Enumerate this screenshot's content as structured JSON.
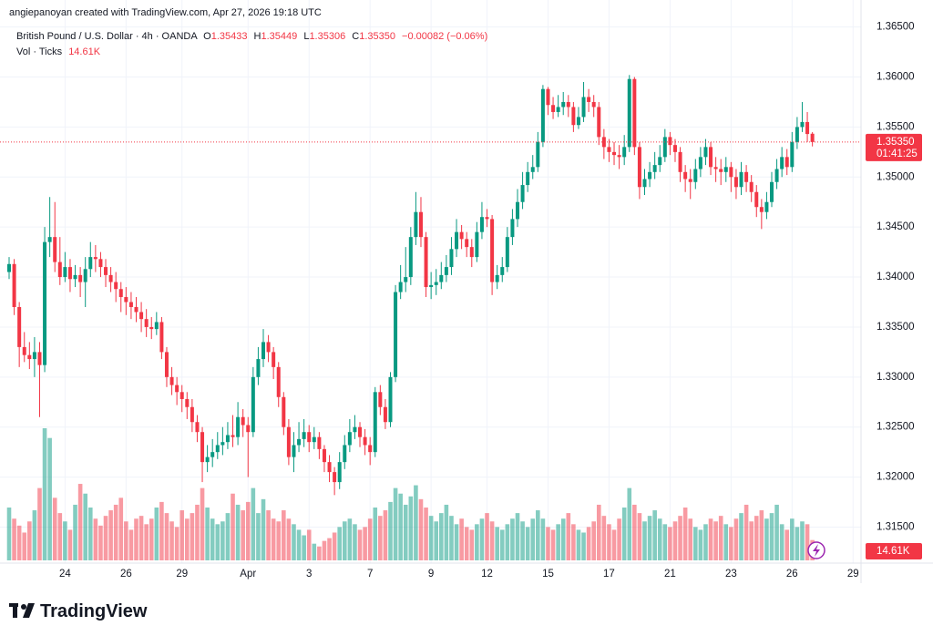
{
  "watermark": "angiepanoyan created with TradingView.com, Apr 27, 2026 19:18 UTC",
  "logo": "TradingView",
  "chart_data": {
    "type": "candlestick",
    "symbol": "British Pound / U.S. Dollar · 4h · OANDA",
    "legend": {
      "open_label": "O",
      "open": "1.35433",
      "high_label": "H",
      "high": "1.35449",
      "low_label": "L",
      "low": "1.35306",
      "close_label": "C",
      "close": "1.35350",
      "change": "−0.00082 (−0.06%)"
    },
    "volume_title": "Vol · Ticks",
    "volume_legend": "14.61K",
    "last_price_label": "1.35350",
    "countdown": "01:41:25",
    "volume_label": "14.61K",
    "up_color": "#089981",
    "down_color": "#f23645",
    "ylim": [
      1.3114,
      1.3677
    ],
    "yticks": [
      {
        "value": 1.315,
        "label": "1.31500"
      },
      {
        "value": 1.32,
        "label": "1.32000"
      },
      {
        "value": 1.325,
        "label": "1.32500"
      },
      {
        "value": 1.33,
        "label": "1.33000"
      },
      {
        "value": 1.335,
        "label": "1.33500"
      },
      {
        "value": 1.34,
        "label": "1.34000"
      },
      {
        "value": 1.345,
        "label": "1.34500"
      },
      {
        "value": 1.35,
        "label": "1.35000"
      },
      {
        "value": 1.355,
        "label": "1.35500"
      },
      {
        "value": 1.36,
        "label": "1.36000"
      },
      {
        "value": 1.365,
        "label": "1.36500"
      }
    ],
    "categories": [
      null,
      null,
      null,
      null,
      null,
      null,
      null,
      null,
      null,
      null,
      null,
      "24",
      null,
      null,
      null,
      null,
      null,
      null,
      null,
      null,
      null,
      null,
      null,
      "26",
      null,
      null,
      null,
      null,
      null,
      null,
      null,
      null,
      null,
      null,
      "29",
      null,
      null,
      null,
      null,
      null,
      null,
      null,
      null,
      null,
      null,
      null,
      null,
      "Apr",
      null,
      null,
      null,
      null,
      null,
      null,
      null,
      null,
      null,
      null,
      null,
      "3",
      null,
      null,
      null,
      null,
      null,
      null,
      null,
      null,
      null,
      null,
      null,
      "7",
      null,
      null,
      null,
      null,
      null,
      null,
      null,
      null,
      null,
      null,
      null,
      "9",
      null,
      null,
      null,
      null,
      null,
      null,
      null,
      null,
      null,
      null,
      "12",
      null,
      null,
      null,
      null,
      null,
      null,
      null,
      null,
      null,
      null,
      null,
      "15",
      null,
      null,
      null,
      null,
      null,
      null,
      null,
      null,
      null,
      null,
      null,
      "17",
      null,
      null,
      null,
      null,
      null,
      null,
      null,
      null,
      null,
      null,
      null,
      "21",
      null,
      null,
      null,
      null,
      null,
      null,
      null,
      null,
      null,
      null,
      null,
      "23",
      null,
      null,
      null,
      null,
      null,
      null,
      null,
      null,
      null,
      null,
      null,
      "26",
      null,
      null,
      null,
      null,
      null,
      null,
      null,
      null,
      null,
      null,
      null,
      "29"
    ],
    "candles": [
      [
        1.3405,
        1.342,
        1.3398,
        1.3413
      ],
      [
        1.3413,
        1.3418,
        1.3362,
        1.337
      ],
      [
        1.337,
        1.3375,
        1.331,
        1.333
      ],
      [
        1.333,
        1.3345,
        1.3315,
        1.3322
      ],
      [
        1.3322,
        1.3335,
        1.3308,
        1.3318
      ],
      [
        1.3318,
        1.334,
        1.33,
        1.3325
      ],
      [
        1.3325,
        1.3335,
        1.326,
        1.3312
      ],
      [
        1.3312,
        1.345,
        1.3305,
        1.3435
      ],
      [
        1.3435,
        1.348,
        1.342,
        1.344
      ],
      [
        1.344,
        1.3475,
        1.3405,
        1.3415
      ],
      [
        1.3415,
        1.344,
        1.3392,
        1.34
      ],
      [
        1.34,
        1.3425,
        1.3395,
        1.341
      ],
      [
        1.341,
        1.3418,
        1.3385,
        1.3398
      ],
      [
        1.3398,
        1.3412,
        1.339,
        1.3402
      ],
      [
        1.3402,
        1.341,
        1.338,
        1.3395
      ],
      [
        1.3395,
        1.342,
        1.337,
        1.3408
      ],
      [
        1.3408,
        1.3435,
        1.34,
        1.342
      ],
      [
        1.342,
        1.3432,
        1.3405,
        1.3418
      ],
      [
        1.3418,
        1.3425,
        1.34,
        1.341
      ],
      [
        1.341,
        1.3418,
        1.339,
        1.3402
      ],
      [
        1.3402,
        1.341,
        1.3385,
        1.3395
      ],
      [
        1.3395,
        1.3405,
        1.3375,
        1.3388
      ],
      [
        1.3388,
        1.3395,
        1.3365,
        1.338
      ],
      [
        1.338,
        1.339,
        1.3362,
        1.3375
      ],
      [
        1.3375,
        1.3385,
        1.3358,
        1.337
      ],
      [
        1.337,
        1.338,
        1.3355,
        1.3365
      ],
      [
        1.3365,
        1.3375,
        1.3345,
        1.3358
      ],
      [
        1.3358,
        1.3368,
        1.334,
        1.335
      ],
      [
        1.335,
        1.336,
        1.3338,
        1.3348
      ],
      [
        1.3348,
        1.3365,
        1.3342,
        1.3355
      ],
      [
        1.3355,
        1.336,
        1.3318,
        1.3325
      ],
      [
        1.3325,
        1.333,
        1.329,
        1.33
      ],
      [
        1.33,
        1.331,
        1.3282,
        1.3292
      ],
      [
        1.3292,
        1.33,
        1.3272,
        1.3285
      ],
      [
        1.3285,
        1.3292,
        1.3265,
        1.3278
      ],
      [
        1.3278,
        1.3285,
        1.3258,
        1.327
      ],
      [
        1.327,
        1.3278,
        1.3245,
        1.3255
      ],
      [
        1.3255,
        1.3262,
        1.3235,
        1.3245
      ],
      [
        1.3245,
        1.325,
        1.3195,
        1.3215
      ],
      [
        1.3215,
        1.3232,
        1.3205,
        1.322
      ],
      [
        1.322,
        1.3238,
        1.321,
        1.3225
      ],
      [
        1.3225,
        1.3245,
        1.3218,
        1.3232
      ],
      [
        1.3232,
        1.325,
        1.3222,
        1.3235
      ],
      [
        1.3235,
        1.3255,
        1.3228,
        1.3242
      ],
      [
        1.3242,
        1.3262,
        1.323,
        1.324
      ],
      [
        1.324,
        1.3275,
        1.3232,
        1.326
      ],
      [
        1.326,
        1.3268,
        1.324,
        1.3252
      ],
      [
        1.3252,
        1.326,
        1.32,
        1.3245
      ],
      [
        1.3245,
        1.331,
        1.324,
        1.33
      ],
      [
        1.33,
        1.333,
        1.3292,
        1.3318
      ],
      [
        1.3318,
        1.3348,
        1.331,
        1.3335
      ],
      [
        1.3335,
        1.3342,
        1.3315,
        1.3325
      ],
      [
        1.3325,
        1.333,
        1.3298,
        1.331
      ],
      [
        1.331,
        1.3315,
        1.327,
        1.328
      ],
      [
        1.328,
        1.3285,
        1.3242,
        1.325
      ],
      [
        1.325,
        1.3258,
        1.3212,
        1.322
      ],
      [
        1.322,
        1.3245,
        1.3205,
        1.3232
      ],
      [
        1.3232,
        1.3255,
        1.3225,
        1.3238
      ],
      [
        1.3238,
        1.3258,
        1.323,
        1.3245
      ],
      [
        1.3245,
        1.3252,
        1.3225,
        1.3235
      ],
      [
        1.3235,
        1.325,
        1.3228,
        1.324
      ],
      [
        1.324,
        1.3245,
        1.3218,
        1.3228
      ],
      [
        1.3228,
        1.3232,
        1.3205,
        1.3215
      ],
      [
        1.3215,
        1.3222,
        1.3195,
        1.3205
      ],
      [
        1.3205,
        1.321,
        1.3182,
        1.3195
      ],
      [
        1.3195,
        1.3225,
        1.3188,
        1.3215
      ],
      [
        1.3215,
        1.3242,
        1.3208,
        1.3232
      ],
      [
        1.3232,
        1.3258,
        1.3225,
        1.3245
      ],
      [
        1.3245,
        1.3262,
        1.3238,
        1.325
      ],
      [
        1.325,
        1.3255,
        1.323,
        1.324
      ],
      [
        1.324,
        1.3248,
        1.3222,
        1.3232
      ],
      [
        1.3232,
        1.324,
        1.3212,
        1.3225
      ],
      [
        1.3225,
        1.329,
        1.322,
        1.3285
      ],
      [
        1.3285,
        1.3292,
        1.3262,
        1.327
      ],
      [
        1.327,
        1.3278,
        1.3248,
        1.3255
      ],
      [
        1.3255,
        1.3305,
        1.325,
        1.33
      ],
      [
        1.33,
        1.3392,
        1.3295,
        1.3385
      ],
      [
        1.3385,
        1.3412,
        1.3378,
        1.3395
      ],
      [
        1.3395,
        1.343,
        1.3385,
        1.34
      ],
      [
        1.34,
        1.345,
        1.3392,
        1.344
      ],
      [
        1.344,
        1.3485,
        1.3432,
        1.3465
      ],
      [
        1.3465,
        1.348,
        1.343,
        1.344
      ],
      [
        1.344,
        1.3445,
        1.338,
        1.339
      ],
      [
        1.339,
        1.3405,
        1.3378,
        1.3392
      ],
      [
        1.3392,
        1.3408,
        1.3382,
        1.3395
      ],
      [
        1.3395,
        1.3415,
        1.3388,
        1.3402
      ],
      [
        1.3402,
        1.3422,
        1.3395,
        1.341
      ],
      [
        1.341,
        1.344,
        1.3402,
        1.3428
      ],
      [
        1.3428,
        1.3458,
        1.342,
        1.3445
      ],
      [
        1.3445,
        1.3452,
        1.3428,
        1.3438
      ],
      [
        1.3438,
        1.3445,
        1.342,
        1.343
      ],
      [
        1.343,
        1.3438,
        1.341,
        1.342
      ],
      [
        1.342,
        1.3455,
        1.3415,
        1.3445
      ],
      [
        1.3445,
        1.3475,
        1.3438,
        1.346
      ],
      [
        1.346,
        1.3468,
        1.345,
        1.3458
      ],
      [
        1.3458,
        1.3462,
        1.3382,
        1.3395
      ],
      [
        1.3395,
        1.3412,
        1.3388,
        1.3402
      ],
      [
        1.3402,
        1.342,
        1.3395,
        1.341
      ],
      [
        1.341,
        1.345,
        1.3405,
        1.344
      ],
      [
        1.344,
        1.3468,
        1.3432,
        1.3458
      ],
      [
        1.3458,
        1.3488,
        1.345,
        1.3475
      ],
      [
        1.3475,
        1.3505,
        1.3468,
        1.3492
      ],
      [
        1.3492,
        1.3515,
        1.3485,
        1.3505
      ],
      [
        1.3505,
        1.3522,
        1.3498,
        1.351
      ],
      [
        1.351,
        1.3545,
        1.3505,
        1.3535
      ],
      [
        1.3535,
        1.3592,
        1.353,
        1.3588
      ],
      [
        1.3588,
        1.359,
        1.3562,
        1.3572
      ],
      [
        1.3572,
        1.358,
        1.3558,
        1.3565
      ],
      [
        1.3565,
        1.3582,
        1.356,
        1.357
      ],
      [
        1.357,
        1.3585,
        1.3562,
        1.3575
      ],
      [
        1.3575,
        1.3582,
        1.356,
        1.357
      ],
      [
        1.357,
        1.3575,
        1.3545,
        1.3552
      ],
      [
        1.3552,
        1.357,
        1.3548,
        1.356
      ],
      [
        1.356,
        1.3595,
        1.3555,
        1.358
      ],
      [
        1.358,
        1.3588,
        1.3565,
        1.3575
      ],
      [
        1.3575,
        1.3582,
        1.356,
        1.357
      ],
      [
        1.357,
        1.3575,
        1.3532,
        1.354
      ],
      [
        1.354,
        1.3548,
        1.3518,
        1.353
      ],
      [
        1.353,
        1.3538,
        1.3515,
        1.3525
      ],
      [
        1.3525,
        1.3535,
        1.3512,
        1.3522
      ],
      [
        1.3522,
        1.3532,
        1.3508,
        1.352
      ],
      [
        1.352,
        1.3542,
        1.3512,
        1.353
      ],
      [
        1.353,
        1.3602,
        1.3525,
        1.3598
      ],
      [
        1.3598,
        1.36,
        1.3522,
        1.353
      ],
      [
        1.353,
        1.3535,
        1.3478,
        1.349
      ],
      [
        1.349,
        1.3508,
        1.3482,
        1.3498
      ],
      [
        1.3498,
        1.3515,
        1.349,
        1.3505
      ],
      [
        1.3505,
        1.3525,
        1.3498,
        1.3512
      ],
      [
        1.3512,
        1.3532,
        1.3505,
        1.352
      ],
      [
        1.352,
        1.3548,
        1.3515,
        1.354
      ],
      [
        1.354,
        1.3545,
        1.3522,
        1.3532
      ],
      [
        1.3532,
        1.3538,
        1.3515,
        1.3525
      ],
      [
        1.3525,
        1.353,
        1.3495,
        1.3505
      ],
      [
        1.3505,
        1.3512,
        1.3485,
        1.3498
      ],
      [
        1.3498,
        1.3508,
        1.3478,
        1.3495
      ],
      [
        1.3495,
        1.3518,
        1.3488,
        1.3508
      ],
      [
        1.3508,
        1.353,
        1.35,
        1.352
      ],
      [
        1.352,
        1.3538,
        1.3512,
        1.353
      ],
      [
        1.353,
        1.3535,
        1.3502,
        1.351
      ],
      [
        1.351,
        1.352,
        1.3495,
        1.3508
      ],
      [
        1.3508,
        1.3518,
        1.3492,
        1.3505
      ],
      [
        1.3505,
        1.352,
        1.3495,
        1.351
      ],
      [
        1.351,
        1.3515,
        1.3485,
        1.35
      ],
      [
        1.35,
        1.3508,
        1.3478,
        1.349
      ],
      [
        1.349,
        1.3515,
        1.3482,
        1.3505
      ],
      [
        1.3505,
        1.3512,
        1.3485,
        1.3495
      ],
      [
        1.3495,
        1.3502,
        1.3475,
        1.3485
      ],
      [
        1.3485,
        1.3492,
        1.346,
        1.347
      ],
      [
        1.347,
        1.3478,
        1.3448,
        1.3465
      ],
      [
        1.3465,
        1.3485,
        1.3458,
        1.3475
      ],
      [
        1.3475,
        1.3505,
        1.347,
        1.3495
      ],
      [
        1.3495,
        1.3518,
        1.3488,
        1.3508
      ],
      [
        1.3508,
        1.353,
        1.35,
        1.352
      ],
      [
        1.352,
        1.3528,
        1.3502,
        1.351
      ],
      [
        1.351,
        1.3545,
        1.3505,
        1.3535
      ],
      [
        1.3535,
        1.356,
        1.3528,
        1.355
      ],
      [
        1.355,
        1.3575,
        1.3545,
        1.3555
      ],
      [
        1.3555,
        1.3565,
        1.3535,
        1.3543
      ],
      [
        1.35433,
        1.35449,
        1.35306,
        1.3535
      ],
      null,
      null,
      null,
      null,
      null,
      null,
      null,
      null
    ],
    "volume": [
      38000,
      30000,
      25000,
      20000,
      28000,
      36000,
      52000,
      95000,
      88000,
      45000,
      34000,
      28000,
      22000,
      40000,
      55000,
      48000,
      38000,
      30000,
      25000,
      32000,
      36000,
      40000,
      45000,
      28000,
      22000,
      30000,
      32000,
      26000,
      30000,
      38000,
      42000,
      34000,
      28000,
      24000,
      36000,
      30000,
      34000,
      40000,
      52000,
      38000,
      30000,
      26000,
      28000,
      34000,
      48000,
      40000,
      36000,
      42000,
      52000,
      34000,
      44000,
      36000,
      30000,
      28000,
      36000,
      30000,
      26000,
      22000,
      18000,
      22000,
      12000,
      10000,
      14000,
      16000,
      20000,
      24000,
      28000,
      30000,
      26000,
      22000,
      24000,
      30000,
      38000,
      32000,
      36000,
      42000,
      52000,
      48000,
      40000,
      46000,
      54000,
      44000,
      38000,
      32000,
      28000,
      34000,
      40000,
      32000,
      26000,
      30000,
      24000,
      22000,
      26000,
      30000,
      34000,
      28000,
      24000,
      22000,
      26000,
      30000,
      34000,
      28000,
      24000,
      30000,
      36000,
      30000,
      24000,
      22000,
      26000,
      30000,
      34000,
      26000,
      22000,
      20000,
      24000,
      28000,
      40000,
      32000,
      26000,
      22000,
      30000,
      38000,
      52000,
      40000,
      34000,
      28000,
      32000,
      36000,
      30000,
      26000,
      24000,
      28000,
      32000,
      38000,
      30000,
      24000,
      22000,
      26000,
      30000,
      28000,
      32000,
      26000,
      24000,
      30000,
      34000,
      40000,
      28000,
      32000,
      36000,
      30000,
      34000,
      40000,
      26000,
      22000,
      30000,
      24000,
      28000,
      26000,
      14610,
      null,
      null,
      null,
      null,
      null,
      null,
      null,
      null
    ]
  }
}
